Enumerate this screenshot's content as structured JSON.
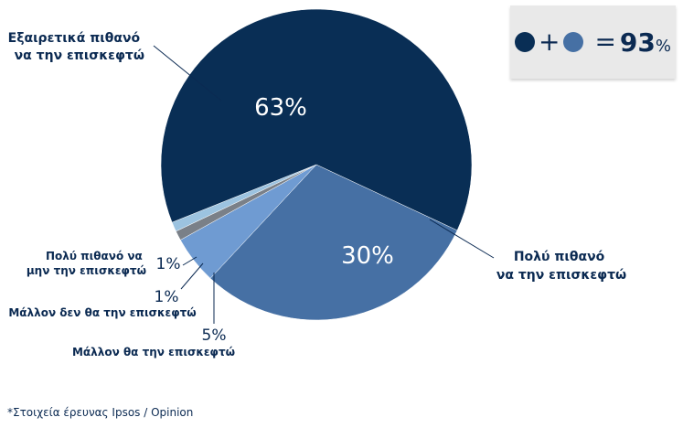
{
  "chart_data": {
    "type": "pie",
    "slices": [
      {
        "label_lines": [
          "Εξαιρετικά πιθανό",
          "να την επισκεφτώ"
        ],
        "value": 63,
        "value_label": "63%",
        "color": "#092e55"
      },
      {
        "label_lines": [
          "Πολύ πιθανό",
          "να την επισκεφτώ"
        ],
        "value": 30,
        "value_label": "30%",
        "color": "#4670a4"
      },
      {
        "label_lines": [
          "Μάλλον θα την επισκεφτώ"
        ],
        "value": 5,
        "value_label": "5%",
        "color": "#6f9bd2"
      },
      {
        "label_lines": [
          "Μάλλον δεν θα την επισκεφτώ"
        ],
        "value": 1,
        "value_label": "1%",
        "color": "#7a8088"
      },
      {
        "label_lines": [
          "Πολύ πιθανό να",
          "μην την επισκεφτώ"
        ],
        "value": 1,
        "value_label": "1%",
        "color": "#9cc3e0"
      }
    ]
  },
  "summary": {
    "plus": "+",
    "equals": "=",
    "total_number": "93",
    "total_unit": "%",
    "dot_colors": [
      "#092e55",
      "#4670a4"
    ]
  },
  "source_note": "*Στοιχεία έρευνας Ipsos / Opinion"
}
